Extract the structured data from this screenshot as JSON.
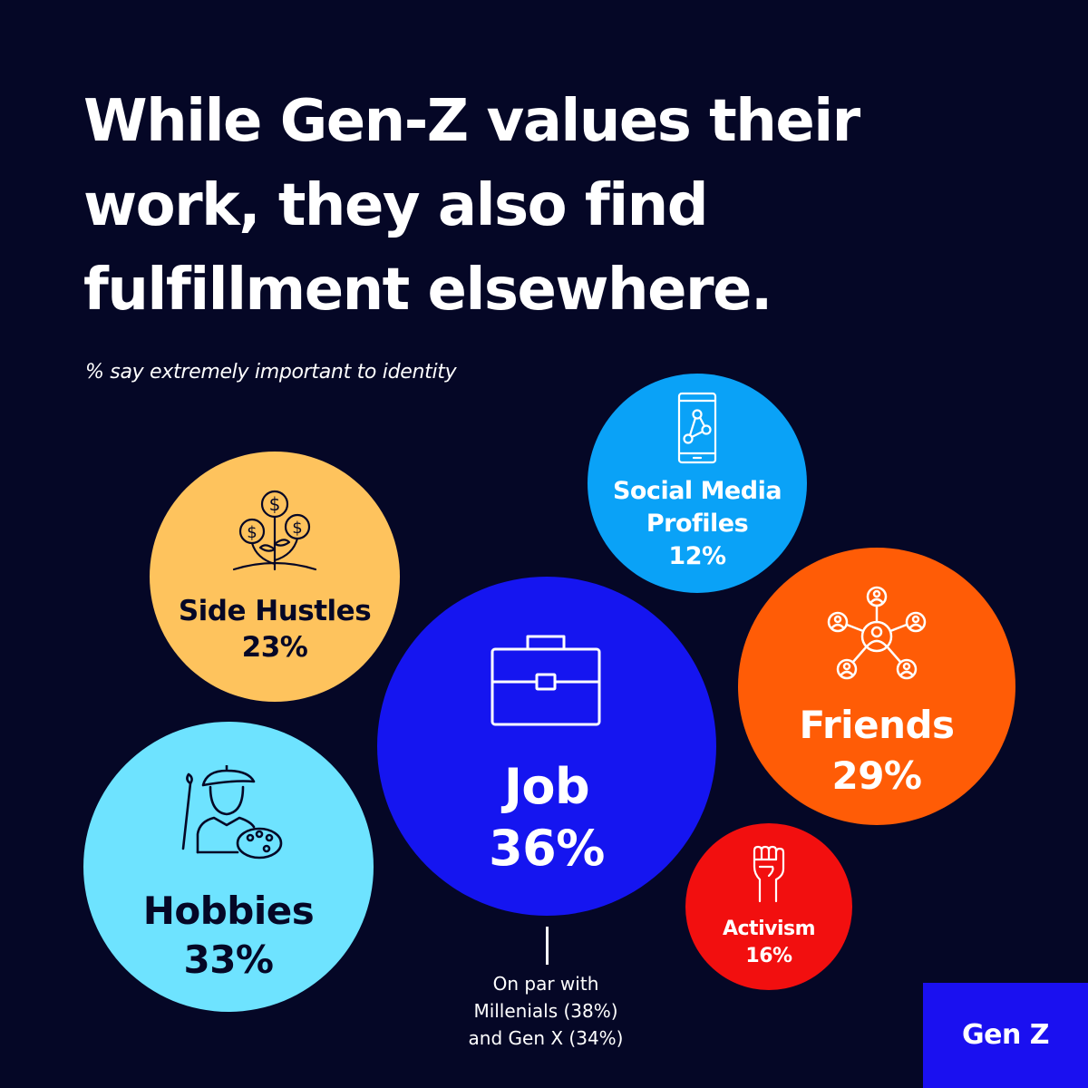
{
  "title_lines": [
    "While Gen-Z values their",
    "work, they also find",
    "fulfillment elsewhere."
  ],
  "subtitle": "% say extremely important to identity",
  "chart_data": {
    "type": "bubble",
    "subtitle": "% say extremely important to identity",
    "points": [
      {
        "label": "Job",
        "value": 36,
        "value_text": "36%",
        "color": "#1515f0",
        "text_color": "#ffffff",
        "icon": "briefcase-icon"
      },
      {
        "label": "Hobbies",
        "value": 33,
        "value_text": "33%",
        "color": "#6ee3ff",
        "text_color": "#050726",
        "icon": "painter-icon"
      },
      {
        "label": "Friends",
        "value": 29,
        "value_text": "29%",
        "color": "#ff5c06",
        "text_color": "#ffffff",
        "icon": "network-icon"
      },
      {
        "label": "Side Hustles",
        "value": 23,
        "value_text": "23%",
        "color": "#fec35d",
        "text_color": "#050726",
        "icon": "money-plant-icon"
      },
      {
        "label": "Activism",
        "value": 16,
        "value_text": "16%",
        "color": "#f20f0f",
        "text_color": "#ffffff",
        "icon": "raised-fist-icon"
      },
      {
        "label": "Social Media Profiles",
        "label_lines": [
          "Social Media",
          "Profiles"
        ],
        "value": 12,
        "value_text": "12%",
        "color": "#0aa2f7",
        "text_color": "#ffffff",
        "icon": "phone-network-icon"
      }
    ]
  },
  "note_lines": [
    "On par with",
    "Millenials (38%)",
    "and Gen X (34%)"
  ],
  "badge": {
    "label": "Gen Z",
    "color": "#1a10f0"
  }
}
